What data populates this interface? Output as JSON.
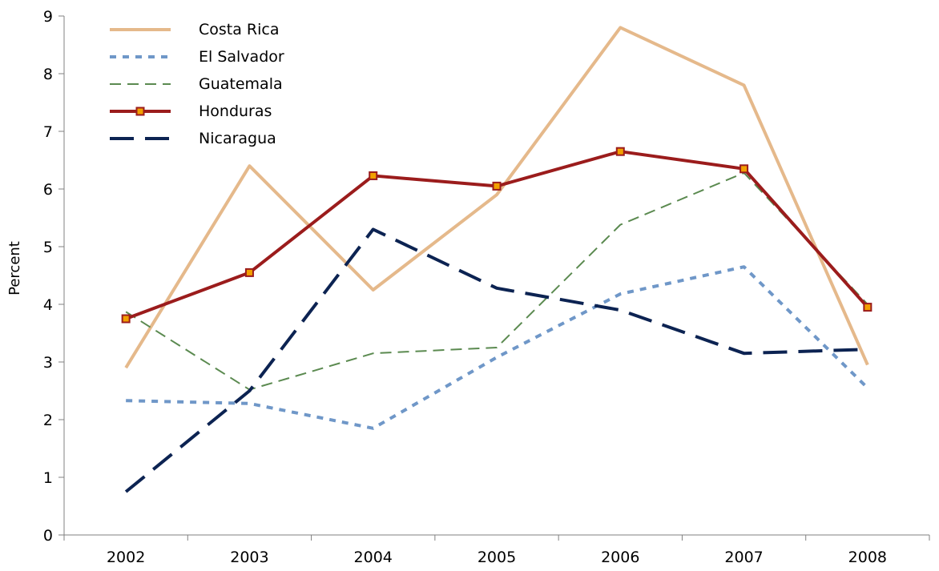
{
  "chart_data": {
    "type": "line",
    "categories": [
      "2002",
      "2003",
      "2004",
      "2005",
      "2006",
      "2007",
      "2008"
    ],
    "ylabel": "Percent",
    "ylim": [
      0,
      9
    ],
    "yticks": [
      0,
      1,
      2,
      3,
      4,
      5,
      6,
      7,
      8,
      9
    ],
    "grid": false,
    "legend_position": "top-left",
    "series": [
      {
        "name": "Costa Rica",
        "values": [
          2.9,
          6.4,
          4.25,
          5.9,
          8.8,
          7.8,
          2.95
        ],
        "color": "#e5b98b",
        "style": "solid",
        "width": 4,
        "marker": "none"
      },
      {
        "name": "El Salvador",
        "values": [
          2.33,
          2.28,
          1.85,
          3.08,
          4.18,
          4.65,
          2.55
        ],
        "color": "#6f97c8",
        "style": "dotted",
        "width": 4,
        "marker": "none"
      },
      {
        "name": "Guatemala",
        "values": [
          3.87,
          2.52,
          3.15,
          3.25,
          5.38,
          6.28,
          4.0
        ],
        "color": "#5b8a50",
        "style": "dashed",
        "width": 2,
        "marker": "none"
      },
      {
        "name": "Honduras",
        "values": [
          3.75,
          4.55,
          6.23,
          6.05,
          6.65,
          6.35,
          3.95
        ],
        "color": "#9b1c1c",
        "style": "solid",
        "width": 4,
        "marker": "square"
      },
      {
        "name": "Nicaragua",
        "values": [
          0.75,
          2.5,
          5.3,
          4.28,
          3.9,
          3.15,
          3.22
        ],
        "color": "#0c2352",
        "style": "longdash",
        "width": 4,
        "marker": "none"
      }
    ]
  }
}
